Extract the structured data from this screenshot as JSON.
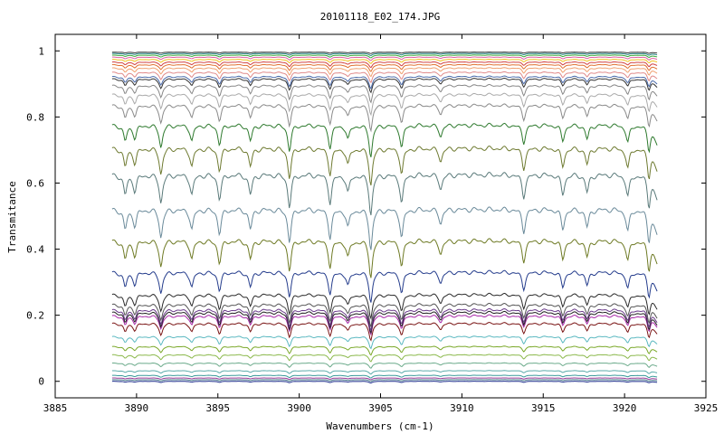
{
  "chart_data": {
    "type": "line",
    "title": "20101118_E02_174.JPG",
    "xlabel": "Wavenumbers (cm-1)",
    "ylabel": "Transmitance",
    "xlim": [
      3885,
      3925
    ],
    "ylim": [
      -0.05,
      1.05
    ],
    "x_range": [
      3888.5,
      3922
    ],
    "xticks": [
      3885,
      3890,
      3895,
      3900,
      3905,
      3910,
      3915,
      3920,
      3925
    ],
    "yticks": [
      0,
      0.2,
      0.4,
      0.6,
      0.8,
      1
    ],
    "ytick_labels": [
      "0",
      "0.2",
      "0.4",
      "0.6",
      "0.8",
      "1"
    ],
    "grid": false,
    "legend": "none",
    "absorption_lines_x": [
      3889.3,
      3889.9,
      3891.5,
      3893.4,
      3895.1,
      3897.0,
      3899.4,
      3901.9,
      3903.0,
      3904.4,
      3906.3,
      3908.7,
      3913.8,
      3916.2,
      3917.7,
      3920.2,
      3921.5
    ],
    "absorption_depth_weights": [
      0.5,
      0.4,
      0.7,
      0.5,
      0.6,
      0.5,
      0.8,
      0.7,
      0.45,
      1.0,
      0.7,
      0.35,
      0.55,
      0.5,
      0.45,
      0.55,
      0.8
    ],
    "series": [
      {
        "color": "#1a2a8a",
        "baseline": 0.0,
        "depth": 0.005
      },
      {
        "color": "#4a7a8a",
        "baseline": 0.005,
        "depth": 0.005
      },
      {
        "color": "#9a3a9a",
        "baseline": 0.01,
        "depth": 0.005
      },
      {
        "color": "#3a9a9a",
        "baseline": 0.018,
        "depth": 0.008
      },
      {
        "color": "#5aaaaa",
        "baseline": 0.032,
        "depth": 0.01
      },
      {
        "color": "#6aaa8a",
        "baseline": 0.055,
        "depth": 0.015
      },
      {
        "color": "#8ab84a",
        "baseline": 0.08,
        "depth": 0.02
      },
      {
        "color": "#7aa828",
        "baseline": 0.105,
        "depth": 0.025
      },
      {
        "color": "#5ab8c0",
        "baseline": 0.135,
        "depth": 0.035
      },
      {
        "color": "#7a1414",
        "baseline": 0.175,
        "depth": 0.05
      },
      {
        "color": "#a828a8",
        "baseline": 0.198,
        "depth": 0.055
      },
      {
        "color": "#222222",
        "baseline": 0.208,
        "depth": 0.06
      },
      {
        "color": "#6a3a8a",
        "baseline": 0.216,
        "depth": 0.06
      },
      {
        "color": "#555555",
        "baseline": 0.232,
        "depth": 0.065
      },
      {
        "color": "#2a2a2a",
        "baseline": 0.262,
        "depth": 0.07
      },
      {
        "color": "#243c8c",
        "baseline": 0.33,
        "depth": 0.09
      },
      {
        "color": "#6e7a24",
        "baseline": 0.425,
        "depth": 0.11
      },
      {
        "color": "#6a8a9a",
        "baseline": 0.52,
        "depth": 0.12
      },
      {
        "color": "#5a7a7a",
        "baseline": 0.625,
        "depth": 0.12
      },
      {
        "color": "#6e7a30",
        "baseline": 0.705,
        "depth": 0.11
      },
      {
        "color": "#2e7a2e",
        "baseline": 0.775,
        "depth": 0.095
      },
      {
        "color": "#8a8a8a",
        "baseline": 0.835,
        "depth": 0.075
      },
      {
        "color": "#aaaaaa",
        "baseline": 0.868,
        "depth": 0.06
      },
      {
        "color": "#888888",
        "baseline": 0.895,
        "depth": 0.05
      },
      {
        "color": "#333333",
        "baseline": 0.915,
        "depth": 0.04
      },
      {
        "color": "#4a6aaa",
        "baseline": 0.922,
        "depth": 0.035
      },
      {
        "color": "#e08a8a",
        "baseline": 0.935,
        "depth": 0.03
      },
      {
        "color": "#f0a070",
        "baseline": 0.948,
        "depth": 0.025
      },
      {
        "color": "#e07030",
        "baseline": 0.958,
        "depth": 0.02
      },
      {
        "color": "#d04040",
        "baseline": 0.966,
        "depth": 0.016
      },
      {
        "color": "#f0c020",
        "baseline": 0.974,
        "depth": 0.012
      },
      {
        "color": "#e060a0",
        "baseline": 0.981,
        "depth": 0.01
      },
      {
        "color": "#3aaa3a",
        "baseline": 0.987,
        "depth": 0.008
      },
      {
        "color": "#208080",
        "baseline": 0.992,
        "depth": 0.006
      },
      {
        "color": "#333333",
        "baseline": 0.996,
        "depth": 0.004
      }
    ]
  }
}
